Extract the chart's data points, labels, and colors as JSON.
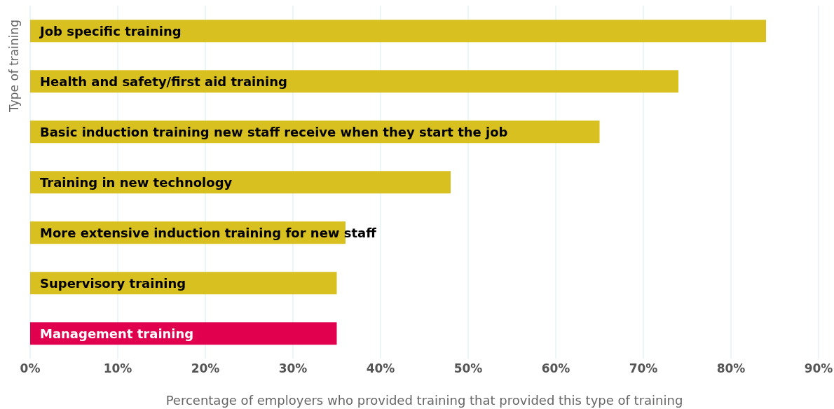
{
  "chart_data": {
    "type": "bar",
    "orientation": "horizontal",
    "ylabel": "Type of training",
    "xlabel": "Percentage of employers who provided training that provided this type of training",
    "categories": [
      "Job specific training",
      "Health and safety/first aid training",
      "Basic induction training new staff receive when they start the job",
      "Training in new technology",
      "More extensive induction training for new staff",
      "Supervisory training",
      "Management training"
    ],
    "values": [
      84,
      74,
      65,
      48,
      36,
      35,
      35
    ],
    "colors": [
      "#d9c021",
      "#d9c021",
      "#d9c021",
      "#d9c021",
      "#d9c021",
      "#d9c021",
      "#e0004d"
    ],
    "xlim": [
      0,
      90
    ],
    "xticks": [
      {
        "value": 0,
        "label": "0%"
      },
      {
        "value": 10,
        "label": "10%"
      },
      {
        "value": 20,
        "label": "20%"
      },
      {
        "value": 30,
        "label": "30%"
      },
      {
        "value": 40,
        "label": "40%"
      },
      {
        "value": 50,
        "label": "50%"
      },
      {
        "value": 60,
        "label": "60%"
      },
      {
        "value": 70,
        "label": "70%"
      },
      {
        "value": 80,
        "label": "80%"
      },
      {
        "value": 90,
        "label": "90%"
      }
    ],
    "grid": "x"
  }
}
